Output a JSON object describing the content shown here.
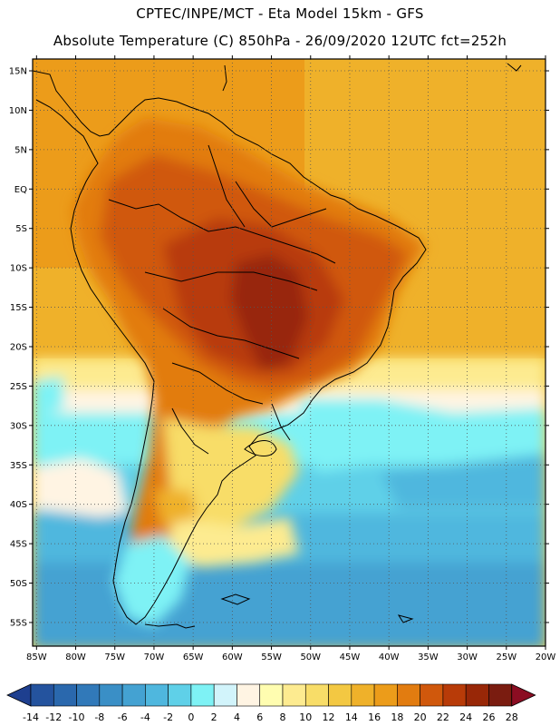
{
  "header": {
    "line1": "CPTEC/INPE/MCT -  Eta Model 15km - GFS",
    "line2": "Absolute Temperature (C) 850hPa - 26/09/2020 12UTC fct=252h"
  },
  "map": {
    "lat_labels": [
      "15N",
      "10N",
      "5N",
      "EQ",
      "5S",
      "10S",
      "15S",
      "20S",
      "25S",
      "30S",
      "35S",
      "40S",
      "45S",
      "50S",
      "55S"
    ],
    "lat_values": [
      15,
      10,
      5,
      0,
      -5,
      -10,
      -15,
      -20,
      -25,
      -30,
      -35,
      -40,
      -45,
      -50,
      -55
    ],
    "lon_labels": [
      "85W",
      "80W",
      "75W",
      "70W",
      "65W",
      "60W",
      "55W",
      "50W",
      "45W",
      "40W",
      "35W",
      "30W",
      "25W",
      "20W"
    ],
    "lon_values": [
      -85,
      -80,
      -75,
      -70,
      -65,
      -60,
      -55,
      -50,
      -45,
      -40,
      -35,
      -30,
      -25,
      -20
    ],
    "lon_range": [
      -85.5,
      -20
    ],
    "lat_range": [
      -58,
      16.5
    ]
  },
  "colorbar": {
    "labels": [
      "-14",
      "-12",
      "-10",
      "-8",
      "-6",
      "-4",
      "-2",
      "0",
      "2",
      "4",
      "6",
      "8",
      "10",
      "12",
      "14",
      "16",
      "18",
      "20",
      "22",
      "24",
      "26",
      "28"
    ],
    "colors": [
      "#1e3f8f",
      "#24539e",
      "#2a68ad",
      "#3179b9",
      "#3a8fc6",
      "#44a2d2",
      "#4fb7de",
      "#5fd0e8",
      "#7ef2f5",
      "#d2f4fb",
      "#fff4e3",
      "#fffdb0",
      "#fdeb90",
      "#f8dd68",
      "#f3c842",
      "#efb12a",
      "#ec9c1a",
      "#e27c10",
      "#d0580c",
      "#b83b08",
      "#982707",
      "#7a1c10",
      "#8b0d22"
    ]
  }
}
